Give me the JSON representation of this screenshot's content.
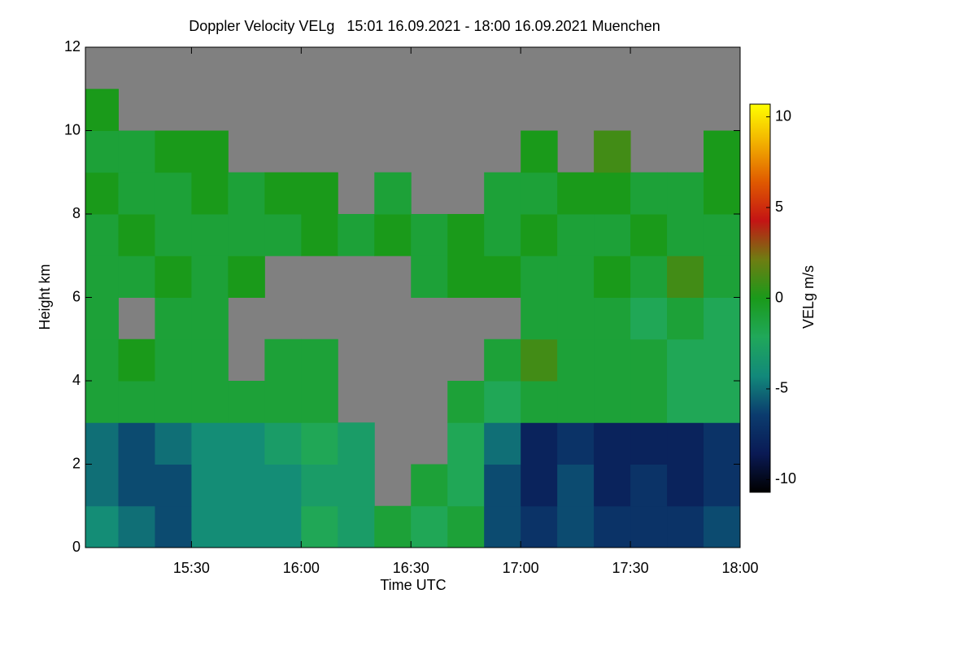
{
  "chart_data": {
    "type": "heatmap",
    "title": "Doppler Velocity VELg   15:01 16.09.2021 - 18:00 16.09.2021 Muenchen",
    "xlabel": "Time UTC",
    "ylabel": "Height km",
    "colorbar_label": "VELg m/s",
    "x": [
      901,
      910,
      920,
      930,
      940,
      950,
      960,
      970,
      980,
      990,
      1000,
      1010,
      1020,
      1030,
      1040,
      1050,
      1060,
      1070,
      1080
    ],
    "y": [
      0,
      1,
      2,
      3,
      4,
      5,
      6,
      7,
      8,
      9,
      10,
      11,
      12
    ],
    "values": [
      [
        -4,
        -5,
        -6,
        -4,
        -4,
        -4,
        -2,
        -3,
        -1,
        -2,
        -1,
        -6,
        -7,
        -6,
        -7,
        -7,
        -7,
        -6
      ],
      [
        -5,
        -6,
        -6,
        -4,
        -4,
        -4,
        -3,
        -3,
        null,
        -1,
        -2,
        -6,
        -8,
        -6,
        -8,
        -7,
        -8,
        -7
      ],
      [
        -5,
        -6,
        -5,
        -4,
        -4,
        -3,
        -2,
        -3,
        null,
        null,
        -2,
        -5,
        -8,
        -7,
        -8,
        -8,
        -8,
        -7
      ],
      [
        -1,
        -1,
        -1,
        -1,
        -1,
        -1,
        -1,
        null,
        null,
        null,
        -1,
        -2,
        -1,
        -1,
        -1,
        -1,
        -2,
        -2
      ],
      [
        -1,
        0,
        -1,
        -1,
        null,
        -1,
        -1,
        null,
        null,
        null,
        null,
        -1,
        1,
        -1,
        -1,
        -1,
        -2,
        -2
      ],
      [
        -1,
        null,
        -1,
        -1,
        null,
        null,
        null,
        null,
        null,
        null,
        null,
        null,
        -1,
        -1,
        -1,
        -2,
        -1,
        -2
      ],
      [
        -1,
        -1,
        0,
        -1,
        0,
        null,
        null,
        null,
        null,
        -1,
        0,
        0,
        -1,
        -1,
        0,
        -1,
        1,
        -1
      ],
      [
        -1,
        0,
        -1,
        -1,
        -1,
        -1,
        0,
        -1,
        0,
        -1,
        0,
        -1,
        0,
        -1,
        -1,
        0,
        -1,
        -1
      ],
      [
        0,
        -1,
        -1,
        0,
        -1,
        0,
        0,
        null,
        -1,
        null,
        null,
        -1,
        -1,
        0,
        0,
        -1,
        -1,
        0
      ],
      [
        -1,
        -1,
        0,
        0,
        null,
        null,
        null,
        null,
        null,
        null,
        null,
        null,
        0,
        null,
        1,
        null,
        null,
        0
      ],
      [
        0,
        null,
        null,
        null,
        null,
        null,
        null,
        null,
        null,
        null,
        null,
        null,
        null,
        null,
        null,
        null,
        null,
        null
      ],
      [
        null,
        null,
        null,
        null,
        null,
        null,
        null,
        null,
        null,
        null,
        null,
        null,
        null,
        null,
        null,
        null,
        null,
        null
      ]
    ],
    "xlim": [
      901,
      1080
    ],
    "ylim": [
      0,
      12
    ],
    "xticks": [
      {
        "value": 930,
        "label": "15:30"
      },
      {
        "value": 960,
        "label": "16:00"
      },
      {
        "value": 990,
        "label": "16:30"
      },
      {
        "value": 1020,
        "label": "17:00"
      },
      {
        "value": 1050,
        "label": "17:30"
      },
      {
        "value": 1080,
        "label": "18:00"
      }
    ],
    "yticks": [
      0,
      2,
      4,
      6,
      8,
      10,
      12
    ],
    "zlim": [
      -10.7,
      10.7
    ],
    "zticks": [
      -10,
      -5,
      0,
      5,
      10
    ],
    "colormap": [
      "#000000",
      "#0a1a55",
      "#0b3c6e",
      "#12897a",
      "#20a85a",
      "#1a9a1a",
      "#6f7d12",
      "#c41414",
      "#e05a00",
      "#f2b000",
      "#ffff00"
    ],
    "null_color": "#808080"
  }
}
